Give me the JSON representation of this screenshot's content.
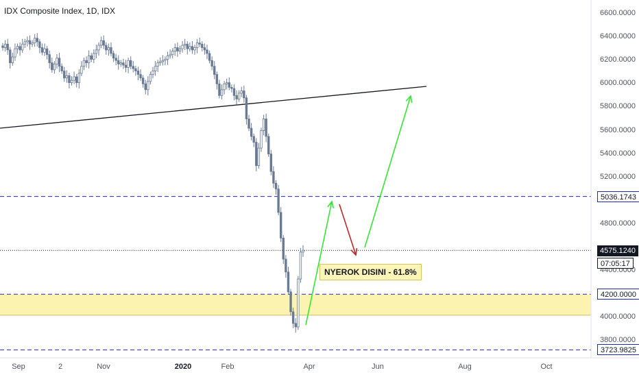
{
  "chart_title": "IDX Composite Index, 1D, IDX",
  "chart_data": {
    "type": "candlestick",
    "title": "IDX Composite Index, 1D, IDX",
    "y_tick_labels": [
      "6600.0000",
      "6400.0000",
      "6200.0000",
      "6000.0000",
      "5800.0000",
      "5600.0000",
      "5400.0000",
      "5200.0000",
      "4800.0000",
      "4400.0000",
      "4000.0000",
      "3800.0000"
    ],
    "x_tick_labels": [
      "Sep",
      "2",
      "Nov",
      "2020",
      "Feb",
      "Apr",
      "Jun",
      "Aug",
      "Oct"
    ],
    "ylim": [
      3690,
      6720
    ],
    "price_labels": {
      "level_high": "5036.1743",
      "current_price": "4575.1240",
      "bar_countdown": "07:05:17",
      "level_zone": "4200.0000",
      "level_low": "3723.9825"
    },
    "horizontal_levels": [
      5036.1743,
      4575.124,
      4200.0,
      3723.9825
    ],
    "support_zone": [
      4020,
      4200
    ],
    "annotation": "NYEROK DISINI - 61.8%",
    "colors": {
      "candle": "#6a7a94",
      "level_line": "#1e2aa8",
      "zone_fill": "#fdf3b0",
      "up_arrow": "#33e633",
      "down_arrow": "#c02525",
      "trend_line": "#131722"
    },
    "candles_close": [
      6310,
      6340,
      6290,
      6180,
      6230,
      6300,
      6320,
      6290,
      6340,
      6360,
      6370,
      6340,
      6350,
      6390,
      6360,
      6310,
      6270,
      6300,
      6250,
      6180,
      6120,
      6170,
      6220,
      6150,
      6110,
      6050,
      6070,
      6010,
      6030,
      6060,
      6010,
      6090,
      6150,
      6200,
      6180,
      6240,
      6210,
      6260,
      6290,
      6330,
      6370,
      6330,
      6290,
      6310,
      6260,
      6220,
      6200,
      6170,
      6180,
      6160,
      6140,
      6200,
      6150,
      6130,
      6110,
      6080,
      6050,
      6000,
      5950,
      6020,
      6080,
      6110,
      6150,
      6180,
      6190,
      6200,
      6210,
      6240,
      6250,
      6280,
      6310,
      6280,
      6300,
      6330,
      6340,
      6300,
      6320,
      6290,
      6310,
      6350,
      6340,
      6310,
      6290,
      6260,
      6200,
      6150,
      6080,
      6000,
      5900,
      5950,
      6000,
      6010,
      5970,
      5960,
      5900,
      5870,
      5920,
      5940,
      5880,
      5700,
      5620,
      5550,
      5500,
      5300,
      5450,
      5600,
      5700,
      5550,
      5400,
      5250,
      5150,
      5100,
      4900,
      4680,
      4500,
      4390,
      4220,
      4050,
      3950,
      3920,
      4330,
      4560,
      4575
    ],
    "arrows": [
      "up",
      "down",
      "up"
    ]
  }
}
